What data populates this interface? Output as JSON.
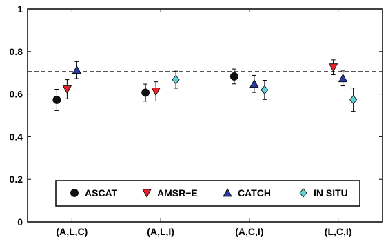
{
  "chart_data": {
    "type": "scatter",
    "title": "",
    "xlabel": "",
    "ylabel": "",
    "categories": [
      "(A,L,C)",
      "(A,L,I)",
      "(A,C,I)",
      "(L,C,I)"
    ],
    "ylim": [
      0,
      1
    ],
    "yticks": [
      "0",
      "0.2",
      "0.4",
      "0.6",
      "0.8",
      "1"
    ],
    "reference_line": {
      "y": 0.707,
      "style": "dashed"
    },
    "grid": false,
    "legend": {
      "placement": "bottom-center",
      "frame": true
    },
    "series": [
      {
        "name": "ASCAT",
        "marker": "circle",
        "color": "#111111",
        "points": [
          {
            "category": "(A,L,C)",
            "y": 0.573,
            "err": 0.05
          },
          {
            "category": "(A,L,I)",
            "y": 0.607,
            "err": 0.04
          },
          {
            "category": "(A,C,I)",
            "y": 0.683,
            "err": 0.035
          }
        ]
      },
      {
        "name": "AMSR−E",
        "marker": "triangle-down",
        "color": "#e8202a",
        "points": [
          {
            "category": "(A,L,C)",
            "y": 0.623,
            "err": 0.045
          },
          {
            "category": "(A,L,I)",
            "y": 0.613,
            "err": 0.045
          },
          {
            "category": "(L,C,I)",
            "y": 0.726,
            "err": 0.035
          }
        ]
      },
      {
        "name": "CATCH",
        "marker": "triangle-up",
        "color": "#2a3b9a",
        "points": [
          {
            "category": "(A,L,C)",
            "y": 0.713,
            "err": 0.04
          },
          {
            "category": "(A,C,I)",
            "y": 0.648,
            "err": 0.04
          },
          {
            "category": "(L,C,I)",
            "y": 0.674,
            "err": 0.035
          }
        ]
      },
      {
        "name": "IN SITU",
        "marker": "diamond",
        "color": "#5fd3d6",
        "points": [
          {
            "category": "(A,L,I)",
            "y": 0.668,
            "err": 0.04
          },
          {
            "category": "(A,C,I)",
            "y": 0.62,
            "err": 0.045
          },
          {
            "category": "(L,C,I)",
            "y": 0.574,
            "err": 0.055
          }
        ]
      }
    ]
  }
}
